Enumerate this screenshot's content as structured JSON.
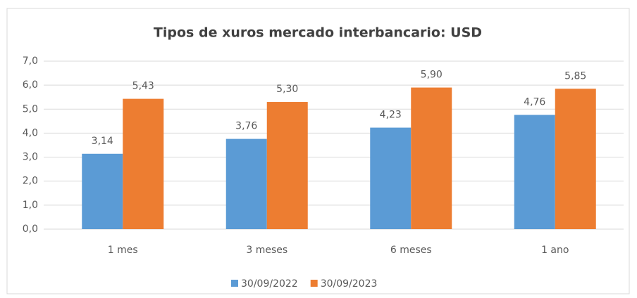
{
  "chart_data": {
    "type": "bar",
    "title": "Tipos de xuros mercado interbancario: USD",
    "categories": [
      "1 mes",
      "3 meses",
      "6 meses",
      "1 ano"
    ],
    "series": [
      {
        "name": "30/09/2022",
        "color": "#5b9bd5",
        "values": [
          3.14,
          3.76,
          4.23,
          4.76
        ],
        "value_labels": [
          "3,14",
          "3,76",
          "4,23",
          "4,76"
        ]
      },
      {
        "name": "30/09/2023",
        "color": "#ed7d31",
        "values": [
          5.43,
          5.3,
          5.9,
          5.85
        ],
        "value_labels": [
          "5,43",
          "5,30",
          "5,90",
          "5,85"
        ]
      }
    ],
    "ylim": [
      0,
      7
    ],
    "yticks": [
      {
        "value": 0,
        "label": "0,0"
      },
      {
        "value": 1,
        "label": "1,0"
      },
      {
        "value": 2,
        "label": "2,0"
      },
      {
        "value": 3,
        "label": "3,0"
      },
      {
        "value": 4,
        "label": "4,0"
      },
      {
        "value": 5,
        "label": "5,0"
      },
      {
        "value": 6,
        "label": "6,0"
      },
      {
        "value": 7,
        "label": "7,0"
      }
    ],
    "grid": true,
    "legend": "bottom"
  }
}
